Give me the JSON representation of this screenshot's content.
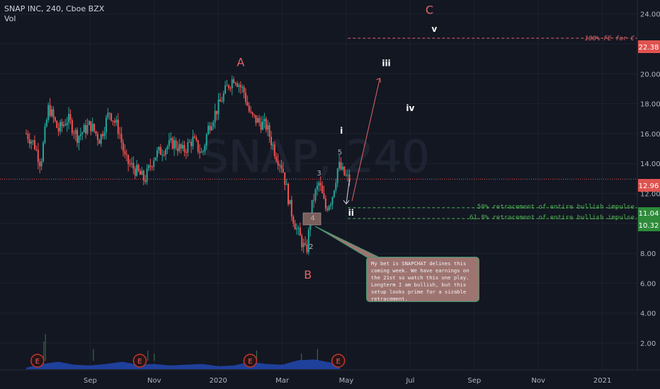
{
  "header": {
    "symbol_line": "SNAP INC, 240, Cboe BZX",
    "indicator": "Vol"
  },
  "watermark": "SNAP, 240",
  "annotations": {
    "callout": "My bet is SNAPCHAT delines this coming week. We have earnings on the 21st so watch this one play. Longterm I am bullish, but this setup looks prime for a sizable retracement.",
    "fib50": "50% retracement of entire bullish impulse",
    "fib618": "61.8% retracement of entire bullish impulse",
    "target": "100% FE for C"
  },
  "price_badges": {
    "target": "22.38",
    "current": "12.96",
    "fib50": "11.04",
    "fib618": "10.32"
  },
  "colors": {
    "background": "#131722",
    "up": "#26a69a",
    "down": "#ef5350",
    "grid": "#1e222d",
    "axis_text": "#b2b5be",
    "wave_red": "#e06666",
    "fib_green": "#4caf50",
    "volume": "#2962ff",
    "earnings": "#c0392b",
    "callout_bg": "#9e7471",
    "callout_border": "#3a9a6e"
  },
  "chart_data": {
    "type": "candlestick",
    "interval": "240",
    "y_axis": {
      "side": "right",
      "ylim": [
        1.0,
        25.0
      ],
      "ticks": [
        "24.00",
        "22.00",
        "20.00",
        "18.00",
        "16.00",
        "14.00",
        "12.00",
        "10.00",
        "8.00",
        "6.00",
        "4.00",
        "2.00"
      ]
    },
    "x_axis": {
      "labels": [
        "Sep",
        "Nov",
        "2020",
        "Mar",
        "May",
        "Jul",
        "Sep",
        "Nov",
        "2021"
      ],
      "label_month_index": [
        2,
        4,
        6,
        8,
        10,
        12,
        14,
        16,
        18
      ]
    },
    "price_path": [
      [
        0.0,
        16.0
      ],
      [
        0.25,
        15.3
      ],
      [
        0.45,
        14.0
      ],
      [
        0.7,
        17.8
      ],
      [
        1.0,
        16.2
      ],
      [
        1.3,
        17.0
      ],
      [
        1.6,
        15.8
      ],
      [
        2.0,
        16.6
      ],
      [
        2.3,
        15.6
      ],
      [
        2.6,
        17.5
      ],
      [
        2.9,
        16.2
      ],
      [
        3.1,
        14.2
      ],
      [
        3.4,
        13.6
      ],
      [
        3.7,
        12.9
      ],
      [
        4.0,
        14.5
      ],
      [
        4.3,
        15.0
      ],
      [
        4.6,
        15.4
      ],
      [
        4.9,
        14.8
      ],
      [
        5.2,
        15.6
      ],
      [
        5.5,
        14.6
      ],
      [
        5.7,
        16.5
      ],
      [
        6.0,
        17.8
      ],
      [
        6.3,
        19.2
      ],
      [
        6.5,
        19.8
      ],
      [
        6.8,
        18.8
      ],
      [
        7.0,
        17.2
      ],
      [
        7.25,
        16.8
      ],
      [
        7.5,
        16.5
      ],
      [
        7.8,
        14.6
      ],
      [
        8.0,
        13.8
      ],
      [
        8.25,
        11.0
      ],
      [
        8.45,
        9.6
      ],
      [
        8.75,
        8.0
      ],
      [
        8.95,
        11.5
      ],
      [
        9.15,
        12.7
      ],
      [
        9.35,
        11.0
      ],
      [
        9.55,
        11.7
      ],
      [
        9.75,
        13.9
      ],
      [
        9.95,
        13.2
      ],
      [
        10.1,
        12.9
      ]
    ],
    "last_price": 12.96,
    "overlays": {
      "projection_points": [
        [
          10.1,
          12.96
        ],
        [
          10.0,
          11.3
        ],
        [
          11.05,
          19.7
        ]
      ],
      "fib_levels": [
        {
          "label": "50% retracement of entire bullish impulse",
          "value": 11.04
        },
        {
          "label": "61.8% retracement of entire bullish impulse",
          "value": 10.32
        }
      ],
      "target_level": {
        "label": "100% FE for C",
        "value": 22.38
      }
    },
    "wave_labels": [
      {
        "text": "A",
        "x": 6.7,
        "y": 20.5
      },
      {
        "text": "B",
        "x": 8.8,
        "y": 6.3
      },
      {
        "text": "C",
        "x": 12.6,
        "y": 24.0
      },
      {
        "text": "i",
        "x": 9.85,
        "y": 16.0
      },
      {
        "text": "ii",
        "x": 10.15,
        "y": 10.5
      },
      {
        "text": "iii",
        "x": 11.25,
        "y": 20.5
      },
      {
        "text": "iv",
        "x": 12.0,
        "y": 17.5
      },
      {
        "text": "v",
        "x": 12.75,
        "y": 22.8
      },
      {
        "text": "2",
        "x": 8.9,
        "y": 8.3
      },
      {
        "text": "3",
        "x": 9.15,
        "y": 13.2
      },
      {
        "text": "4",
        "x": 8.95,
        "y": 10.2
      },
      {
        "text": "5",
        "x": 9.8,
        "y": 14.6
      }
    ],
    "earnings_markers": [
      {
        "label": "E",
        "x": 0.35
      },
      {
        "label": "E",
        "x": 3.55
      },
      {
        "label": "E",
        "x": 7.0
      },
      {
        "label": "E",
        "x": 9.75
      }
    ],
    "volume_profile": [
      [
        0.0,
        0.35
      ],
      [
        0.5,
        0.6
      ],
      [
        1.0,
        0.75
      ],
      [
        1.5,
        0.55
      ],
      [
        2.0,
        0.5
      ],
      [
        2.5,
        0.6
      ],
      [
        3.0,
        0.75
      ],
      [
        3.5,
        0.55
      ],
      [
        4.0,
        0.6
      ],
      [
        4.5,
        0.5
      ],
      [
        5.0,
        0.55
      ],
      [
        5.5,
        0.6
      ],
      [
        6.0,
        0.45
      ],
      [
        6.5,
        0.5
      ],
      [
        7.0,
        0.75
      ],
      [
        7.5,
        0.6
      ],
      [
        8.0,
        0.55
      ],
      [
        8.5,
        0.85
      ],
      [
        9.0,
        0.9
      ],
      [
        9.5,
        0.7
      ],
      [
        9.8,
        0.45
      ]
    ],
    "volume_spikes": [
      [
        0.55,
        2.1
      ],
      [
        0.6,
        2.6
      ],
      [
        2.1,
        1.6
      ],
      [
        3.8,
        1.5
      ],
      [
        4.0,
        1.3
      ],
      [
        7.2,
        1.5
      ],
      [
        8.6,
        1.3
      ],
      [
        9.1,
        1.6
      ]
    ]
  }
}
